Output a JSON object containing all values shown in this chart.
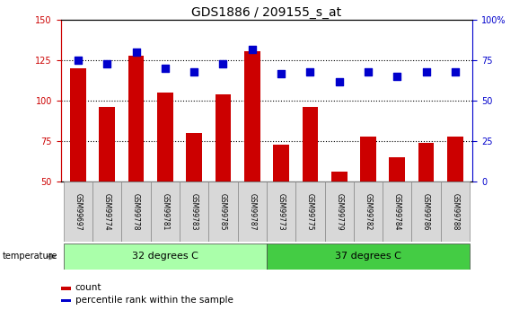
{
  "title": "GDS1886 / 209155_s_at",
  "samples": [
    "GSM99697",
    "GSM99774",
    "GSM99778",
    "GSM99781",
    "GSM99783",
    "GSM99785",
    "GSM99787",
    "GSM99773",
    "GSM99775",
    "GSM99779",
    "GSM99782",
    "GSM99784",
    "GSM99786",
    "GSM99788"
  ],
  "counts": [
    120,
    96,
    128,
    105,
    80,
    104,
    131,
    73,
    96,
    56,
    78,
    65,
    74,
    78
  ],
  "percentile_ranks": [
    75,
    73,
    80,
    70,
    68,
    73,
    82,
    67,
    68,
    62,
    68,
    65,
    68,
    68
  ],
  "group1_label": "32 degrees C",
  "group2_label": "37 degrees C",
  "group1_count": 7,
  "group2_count": 7,
  "ylim_left": [
    50,
    150
  ],
  "ylim_right": [
    0,
    100
  ],
  "yticks_left": [
    50,
    75,
    100,
    125,
    150
  ],
  "yticks_right": [
    0,
    25,
    50,
    75,
    100
  ],
  "bar_color": "#cc0000",
  "dot_color": "#0000cc",
  "group1_bg": "#aaffaa",
  "group2_bg": "#44cc44",
  "temp_label": "temperature",
  "legend_count": "count",
  "legend_pct": "percentile rank within the sample",
  "title_fontsize": 10,
  "tick_fontsize": 7,
  "label_fontsize": 7.5,
  "grid_values": [
    75,
    100,
    125
  ]
}
